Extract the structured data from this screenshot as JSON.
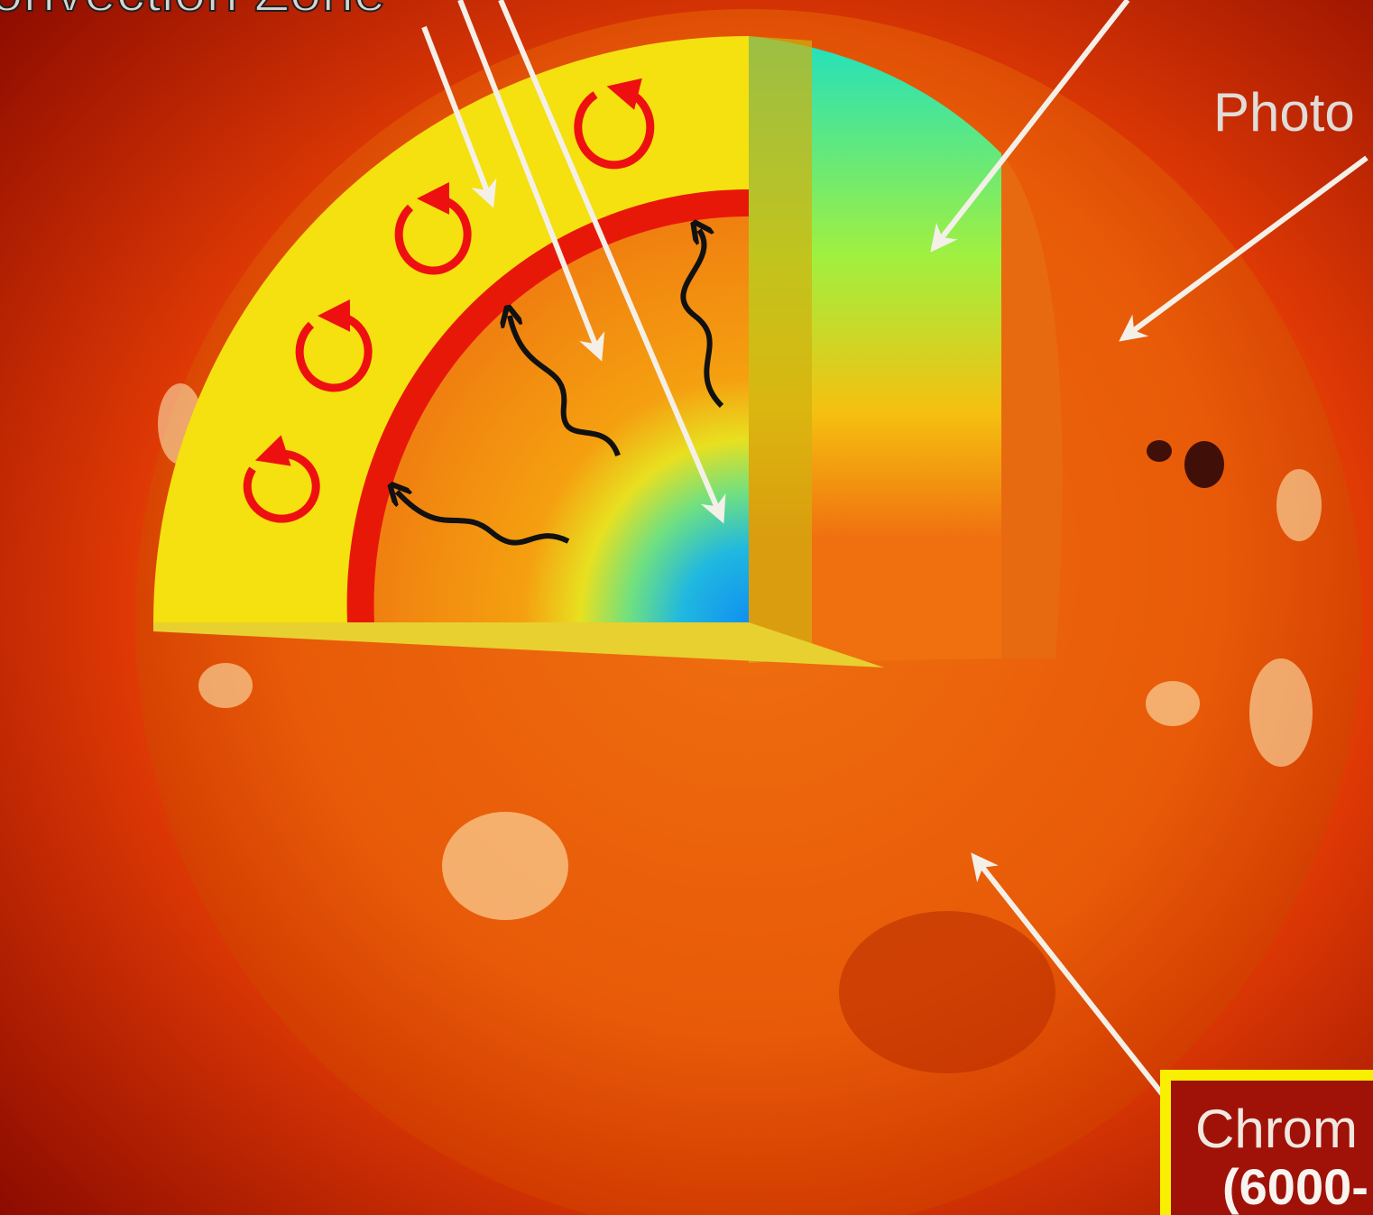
{
  "labels": [
    {
      "text": "onvection Zone"
    },
    {
      "text": "Photo"
    },
    {
      "text": "Chrom"
    },
    {
      "text": "(6000-"
    }
  ]
}
